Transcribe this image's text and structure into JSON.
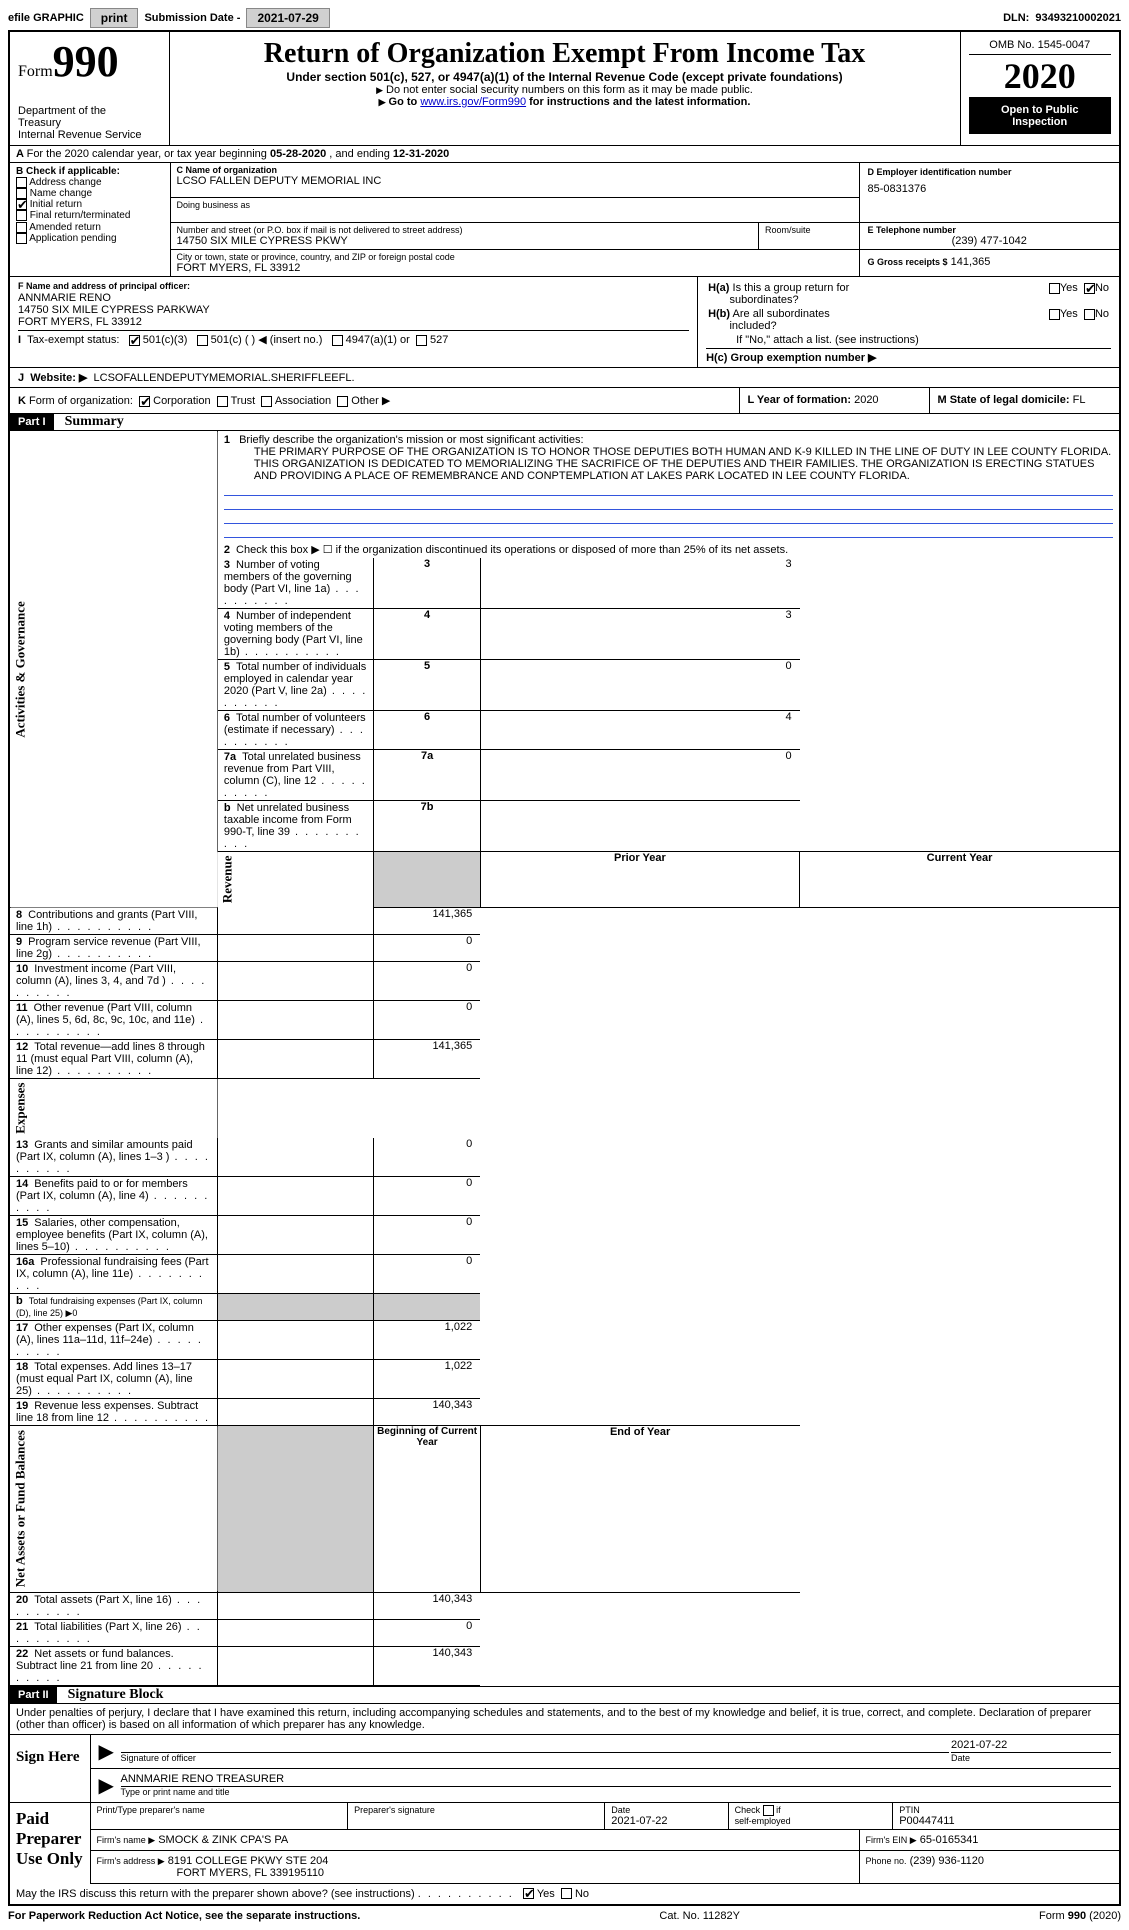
{
  "header_bar": {
    "efile_label": "efile GRAPHIC",
    "print_btn": "print",
    "sub_date_label": "Submission Date - ",
    "sub_date": "2021-07-29",
    "dln_label": "DLN: ",
    "dln": "93493210002021"
  },
  "title_block": {
    "form_word": "Form",
    "form_num": "990",
    "dept": "Department of the Treasury\nInternal Revenue Service",
    "main_title": "Return of Organization Exempt From Income Tax",
    "subtitle": "Under section 501(c), 527, or 4947(a)(1) of the Internal Revenue Code (except private foundations)",
    "instr1": "Do not enter social security numbers on this form as it may be made public.",
    "instr2_a": "Go to ",
    "instr2_link": "www.irs.gov/Form990",
    "instr2_b": " for instructions and the latest information.",
    "omb_label": "OMB No. 1545-0047",
    "year": "2020",
    "open_public": "Open to Public Inspection"
  },
  "line_A": {
    "text_a": "For the 2020 calendar year, or tax year beginning ",
    "date1": "05-28-2020",
    "text_b": " , and ending ",
    "date2": "12-31-2020"
  },
  "box_B": {
    "title": "B Check if applicable:",
    "addr_change": "Address change",
    "name_change": "Name change",
    "initial": "Initial return",
    "final": "Final return/terminated",
    "amended": "Amended return",
    "app_pending": "Application pending",
    "initial_checked": true
  },
  "box_C": {
    "label": "C Name of organization",
    "org_name": "LCSO FALLEN DEPUTY MEMORIAL INC",
    "dba_label": "Doing business as",
    "street_label": "Number and street (or P.O. box if mail is not delivered to street address)",
    "room_label": "Room/suite",
    "street": "14750 SIX MILE CYPRESS PKWY",
    "city_label": "City or town, state or province, country, and ZIP or foreign postal code",
    "city": "FORT MYERS, FL  33912"
  },
  "box_D": {
    "label": "D Employer identification number",
    "value": "85-0831376"
  },
  "box_E": {
    "label": "E Telephone number",
    "value": "(239) 477-1042"
  },
  "box_G": {
    "label": "G Gross receipts $",
    "value": "141,365"
  },
  "box_F": {
    "label": "F Name and address of principal officer:",
    "name": "ANNMARIE RENO",
    "addr1": "14750 SIX MILE CYPRESS PARKWAY",
    "addr2": "FORT MYERS, FL  33912"
  },
  "box_H": {
    "a_label": "H(a)  Is this a group return for subordinates?",
    "b_label": "H(b)  Are all subordinates included?",
    "b_note": "If \"No,\" attach a list. (see instructions)",
    "c_label": "H(c)  Group exemption number ▶",
    "yes": "Yes",
    "no": "No",
    "a_no_checked": true
  },
  "line_I": {
    "label": "Tax-exempt status:",
    "c3": "501(c)(3)",
    "c": "501(c) (  ) ◀ (insert no.)",
    "a1": "4947(a)(1) or",
    "527": "527",
    "c3_checked": true
  },
  "line_J": {
    "label": "Website: ▶",
    "value": "LCSOFALLENDEPUTYMEMORIAL.SHERIFFLEEFL."
  },
  "line_K": {
    "label": "Form of organization:",
    "corp": "Corporation",
    "trust": "Trust",
    "assoc": "Association",
    "other": "Other ▶",
    "corp_checked": true
  },
  "line_L": {
    "label": "L Year of formation:",
    "value": "2020"
  },
  "line_M": {
    "label": "M State of legal domicile:",
    "value": "FL"
  },
  "part1": {
    "part": "Part I",
    "title": "Summary",
    "vert_ag": "Activities & Governance",
    "vert_rev": "Revenue",
    "vert_exp": "Expenses",
    "vert_net": "Net Assets or Fund Balances",
    "l1_label": "Briefly describe the organization's mission or most significant activities:",
    "l1_text": "THE PRIMARY PURPOSE OF THE ORGANIZATION IS TO HONOR THOSE DEPUTIES BOTH HUMAN AND K-9 KILLED IN THE LINE OF DUTY IN LEE COUNTY FLORIDA. THIS ORGANIZATION IS DEDICATED TO MEMORIALIZING THE SACRIFICE OF THE DEPUTIES AND THEIR FAMILIES. THE ORGANIZATION IS ERECTING STATUES AND PROVIDING A PLACE OF REMEMBRANCE AND CONPTEMPLATION AT LAKES PARK LOCATED IN LEE COUNTY FLORIDA.",
    "l2": "Check this box ▶ ☐  if the organization discontinued its operations or disposed of more than 25% of its net assets.",
    "rows_ag": [
      {
        "n": "3",
        "desc": "Number of voting members of the governing body (Part VI, line 1a)",
        "box": "3",
        "val": "3"
      },
      {
        "n": "4",
        "desc": "Number of independent voting members of the governing body (Part VI, line 1b)",
        "box": "4",
        "val": "3"
      },
      {
        "n": "5",
        "desc": "Total number of individuals employed in calendar year 2020 (Part V, line 2a)",
        "box": "5",
        "val": "0"
      },
      {
        "n": "6",
        "desc": "Total number of volunteers (estimate if necessary)",
        "box": "6",
        "val": "4"
      },
      {
        "n": "7a",
        "desc": "Total unrelated business revenue from Part VIII, column (C), line 12",
        "box": "7a",
        "val": "0"
      },
      {
        "n": "b",
        "desc": "Net unrelated business taxable income from Form 990-T, line 39",
        "box": "7b",
        "val": ""
      }
    ],
    "col_prior": "Prior Year",
    "col_current": "Current Year",
    "rows_rev": [
      {
        "n": "8",
        "desc": "Contributions and grants (Part VIII, line 1h)",
        "cur": "141,365"
      },
      {
        "n": "9",
        "desc": "Program service revenue (Part VIII, line 2g)",
        "cur": "0"
      },
      {
        "n": "10",
        "desc": "Investment income (Part VIII, column (A), lines 3, 4, and 7d )",
        "cur": "0"
      },
      {
        "n": "11",
        "desc": "Other revenue (Part VIII, column (A), lines 5, 6d, 8c, 9c, 10c, and 11e)",
        "cur": "0"
      },
      {
        "n": "12",
        "desc": "Total revenue—add lines 8 through 11 (must equal Part VIII, column (A), line 12)",
        "cur": "141,365"
      }
    ],
    "rows_exp": [
      {
        "n": "13",
        "desc": "Grants and similar amounts paid (Part IX, column (A), lines 1–3 )",
        "cur": "0"
      },
      {
        "n": "14",
        "desc": "Benefits paid to or for members (Part IX, column (A), line 4)",
        "cur": "0"
      },
      {
        "n": "15",
        "desc": "Salaries, other compensation, employee benefits (Part IX, column (A), lines 5–10)",
        "cur": "0"
      },
      {
        "n": "16a",
        "desc": "Professional fundraising fees (Part IX, column (A), line 11e)",
        "cur": "0"
      },
      {
        "n": "b",
        "desc": "Total fundraising expenses (Part IX, column (D), line 25) ▶0",
        "cur": null
      },
      {
        "n": "17",
        "desc": "Other expenses (Part IX, column (A), lines 11a–11d, 11f–24e)",
        "cur": "1,022"
      },
      {
        "n": "18",
        "desc": "Total expenses. Add lines 13–17 (must equal Part IX, column (A), line 25)",
        "cur": "1,022"
      },
      {
        "n": "19",
        "desc": "Revenue less expenses. Subtract line 18 from line 12",
        "cur": "140,343"
      }
    ],
    "col_begin": "Beginning of Current Year",
    "col_end": "End of Year",
    "rows_net": [
      {
        "n": "20",
        "desc": "Total assets (Part X, line 16)",
        "cur": "140,343"
      },
      {
        "n": "21",
        "desc": "Total liabilities (Part X, line 26)",
        "cur": "0"
      },
      {
        "n": "22",
        "desc": "Net assets or fund balances. Subtract line 21 from line 20",
        "cur": "140,343"
      }
    ]
  },
  "part2": {
    "part": "Part II",
    "title": "Signature Block",
    "perjury": "Under penalties of perjury, I declare that I have examined this return, including accompanying schedules and statements, and to the best of my knowledge and belief, it is true, correct, and complete. Declaration of preparer (other than officer) is based on all information of which preparer has any knowledge.",
    "sign_here": "Sign Here",
    "sig_officer": "Signature of officer",
    "sig_date": "2021-07-22",
    "date_label": "Date",
    "officer_name": "ANNMARIE RENO  TREASURER",
    "type_name": "Type or print name and title",
    "paid": "Paid Preparer Use Only",
    "prep_name_label": "Print/Type preparer's name",
    "prep_sig_label": "Preparer's signature",
    "prep_date_label": "Date",
    "prep_date": "2021-07-22",
    "check_self": "Check ☐ if self-employed",
    "ptin_label": "PTIN",
    "ptin": "P00447411",
    "firm_name_label": "Firm's name   ▶",
    "firm_name": "SMOCK & ZINK CPA'S PA",
    "firm_ein_label": "Firm's EIN ▶",
    "firm_ein": "65-0165341",
    "firm_addr_label": "Firm's address ▶",
    "firm_addr1": "8191 COLLEGE PKWY STE 204",
    "firm_addr2": "FORT MYERS, FL  339195110",
    "phone_label": "Phone no.",
    "phone": "(239) 936-1120",
    "discuss": "May the IRS discuss this return with the preparer shown above? (see instructions)",
    "yes": "Yes",
    "no": "No",
    "yes_checked": true
  },
  "footer": {
    "left": "For Paperwork Reduction Act Notice, see the separate instructions.",
    "mid": "Cat. No. 11282Y",
    "right_a": "Form ",
    "right_b": "990",
    "right_c": " (2020)"
  },
  "colors": {
    "black": "#000000",
    "white": "#ffffff",
    "gray_btn": "#d0d0d0",
    "blue_line": "#3355dd",
    "link": "#0000cc"
  }
}
